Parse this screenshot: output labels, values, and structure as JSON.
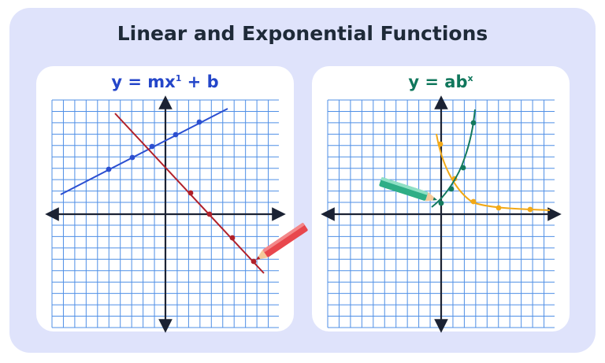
{
  "title": "Linear and Exponential Functions",
  "colors": {
    "background": "#dfe3fb",
    "grid": "#4f8fe6",
    "axis": "#1b2233",
    "linear_blue": "#2b4fd1",
    "linear_red": "#b0202a",
    "exp_green": "#12795e",
    "decay_orange": "#f2a917"
  },
  "panels": {
    "linear": {
      "equation_base": "y = mx",
      "equation_exponent": "1",
      "equation_tail": " + b",
      "icon": "red-pencil-icon"
    },
    "exponential": {
      "equation_base": "y = ab",
      "equation_exponent": "x",
      "icon": "green-pencil-icon"
    }
  }
}
